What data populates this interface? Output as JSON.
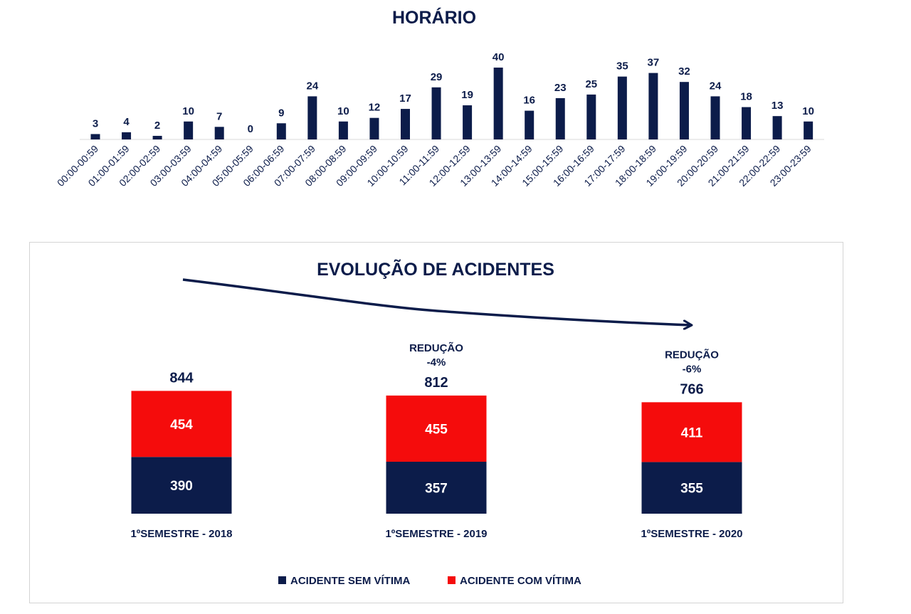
{
  "chart_data": [
    {
      "type": "bar",
      "title": "HORÁRIO",
      "categories": [
        "00:00-00:59",
        "01:00-01:59",
        "02:00-02:59",
        "03:00-03:59",
        "04:00-04:59",
        "05:00-05:59",
        "06:00-06:59",
        "07:00-07:59",
        "08:00-08:59",
        "09:00-09:59",
        "10:00-10:59",
        "11:00-11:59",
        "12:00-12:59",
        "13:00-13:59",
        "14:00-14:59",
        "15:00-15:59",
        "16:00-16:59",
        "17:00-17:59",
        "18:00-18:59",
        "19:00-19:59",
        "20:00-20:59",
        "21:00-21:59",
        "22:00-22:59",
        "23:00-23:59"
      ],
      "values": [
        3,
        4,
        2,
        10,
        7,
        0,
        9,
        24,
        10,
        12,
        17,
        29,
        19,
        40,
        16,
        23,
        25,
        35,
        37,
        32,
        24,
        18,
        13,
        10
      ],
      "data_labels": true,
      "grid": false,
      "colors": {
        "bar": "#0c1c4a"
      }
    },
    {
      "type": "bar",
      "stacked": true,
      "title": "EVOLUÇÃO DE ACIDENTES",
      "categories": [
        "1ºSEMESTRE - 2018",
        "1ºSEMESTRE - 2019",
        "1ºSEMESTRE - 2020"
      ],
      "series": [
        {
          "name": "ACIDENTE SEM VÍTIMA",
          "values": [
            390,
            357,
            355
          ],
          "color": "#0c1c4a"
        },
        {
          "name": "ACIDENTE COM VÍTIMA",
          "values": [
            454,
            455,
            411
          ],
          "color": "#f50c0c"
        }
      ],
      "totals": [
        "844",
        "812",
        "766"
      ],
      "annotations": [
        {
          "category": "1ºSEMESTRE - 2019",
          "lines": [
            "REDUÇÃO",
            "-4%"
          ]
        },
        {
          "category": "1ºSEMESTRE - 2020",
          "lines": [
            "REDUÇÃO",
            "-6%"
          ]
        }
      ],
      "trend_arrow": true,
      "legend": "bottom",
      "grid": false
    }
  ]
}
